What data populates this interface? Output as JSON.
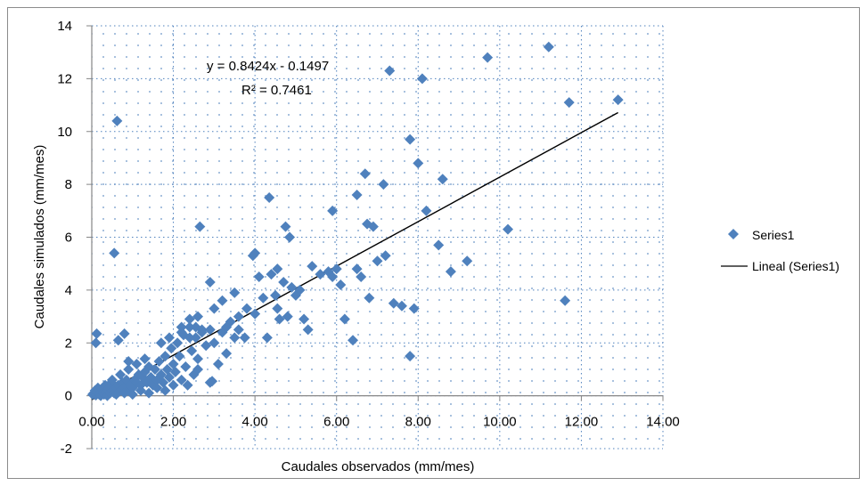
{
  "chart_data": {
    "type": "scatter",
    "title": "",
    "xlabel": "Caudales observados (mm/mes)",
    "ylabel": "Caudales simulados (mm/mes)",
    "xlim": [
      0,
      14
    ],
    "ylim": [
      -2,
      14
    ],
    "x_ticks": [
      "0.00",
      "2.00",
      "4.00",
      "6.00",
      "8.00",
      "10.00",
      "12.00",
      "14.00"
    ],
    "y_ticks": [
      "-2",
      "0",
      "2",
      "4",
      "6",
      "8",
      "10",
      "12",
      "14"
    ],
    "gridlines": "dotted",
    "plot_background": "dotted pattern",
    "legend_position": "right",
    "legend": {
      "series_label": "Series1",
      "trend_label": "Lineal (Series1)"
    },
    "trendline": {
      "slope": 0.8424,
      "intercept": -0.1497,
      "equation": "y = 0.8424x - 0.1497",
      "r2": "R² = 0.7461"
    },
    "colors": {
      "marker": "#4f81bd",
      "trendline": "#000000",
      "axis": "#868686",
      "grid": "#4f81bd"
    },
    "series": [
      {
        "name": "Series1",
        "points": [
          [
            0.02,
            0.05
          ],
          [
            0.05,
            0.1
          ],
          [
            0.08,
            0.2
          ],
          [
            0.1,
            0.02
          ],
          [
            0.12,
            0.15
          ],
          [
            0.15,
            0.3
          ],
          [
            0.18,
            0.05
          ],
          [
            0.2,
            0.1
          ],
          [
            0.22,
            0.0
          ],
          [
            0.25,
            0.25
          ],
          [
            0.28,
            0.1
          ],
          [
            0.3,
            0.05
          ],
          [
            0.33,
            0.4
          ],
          [
            0.35,
            0.15
          ],
          [
            0.38,
            0.0
          ],
          [
            0.4,
            0.2
          ],
          [
            0.42,
            0.3
          ],
          [
            0.45,
            0.1
          ],
          [
            0.48,
            0.5
          ],
          [
            0.5,
            0.2
          ],
          [
            0.55,
            0.1
          ],
          [
            0.6,
            0.3
          ],
          [
            0.65,
            0.4
          ],
          [
            0.7,
            0.2
          ],
          [
            0.75,
            0.5
          ],
          [
            0.8,
            0.3
          ],
          [
            0.85,
            0.6
          ],
          [
            0.9,
            0.2
          ],
          [
            0.95,
            0.4
          ],
          [
            1.0,
            0.3
          ],
          [
            1.05,
            0.6
          ],
          [
            1.1,
            0.5
          ],
          [
            1.15,
            0.8
          ],
          [
            1.2,
            0.4
          ],
          [
            1.25,
            0.7
          ],
          [
            1.3,
            0.9
          ],
          [
            1.35,
            0.5
          ],
          [
            1.4,
            1.1
          ],
          [
            1.45,
            0.7
          ],
          [
            1.5,
            0.4
          ],
          [
            1.55,
            1.0
          ],
          [
            1.6,
            0.6
          ],
          [
            1.65,
            1.3
          ],
          [
            1.7,
            0.8
          ],
          [
            1.75,
            0.5
          ],
          [
            1.8,
            1.5
          ],
          [
            1.85,
            1.0
          ],
          [
            1.9,
            0.7
          ],
          [
            1.95,
            1.8
          ],
          [
            2.0,
            1.2
          ],
          [
            2.05,
            0.9
          ],
          [
            2.1,
            2.0
          ],
          [
            2.15,
            1.5
          ],
          [
            2.2,
            0.6
          ],
          [
            2.25,
            2.3
          ],
          [
            2.3,
            1.1
          ],
          [
            2.35,
            0.4
          ],
          [
            2.4,
            2.6
          ],
          [
            2.45,
            1.7
          ],
          [
            2.5,
            0.8
          ],
          [
            2.55,
            2.2
          ],
          [
            2.6,
            1.4
          ],
          [
            2.7,
            2.5
          ],
          [
            2.8,
            1.9
          ],
          [
            2.9,
            0.5
          ],
          [
            3.0,
            2.0
          ],
          [
            3.1,
            1.2
          ],
          [
            3.2,
            2.4
          ],
          [
            3.3,
            1.6
          ],
          [
            3.4,
            2.8
          ],
          [
            3.5,
            2.2
          ],
          [
            3.6,
            3.0
          ],
          [
            1.2,
            0.2
          ],
          [
            1.4,
            0.1
          ],
          [
            1.6,
            0.3
          ],
          [
            1.8,
            0.2
          ],
          [
            2.0,
            0.4
          ],
          [
            0.5,
            0.6
          ],
          [
            0.7,
            0.8
          ],
          [
            0.9,
            1.0
          ],
          [
            1.1,
            1.2
          ],
          [
            1.3,
            1.4
          ],
          [
            1.7,
            2.0
          ],
          [
            1.9,
            2.2
          ],
          [
            2.2,
            2.6
          ],
          [
            2.4,
            2.9
          ],
          [
            2.6,
            3.0
          ],
          [
            0.6,
            0.05
          ],
          [
            0.8,
            0.1
          ],
          [
            1.0,
            0.05
          ],
          [
            0.12,
            2.35
          ],
          [
            0.1,
            2.0
          ],
          [
            0.65,
            2.1
          ],
          [
            0.8,
            2.35
          ],
          [
            0.9,
            1.3
          ],
          [
            2.2,
            2.4
          ],
          [
            2.4,
            2.2
          ],
          [
            2.55,
            2.6
          ],
          [
            2.7,
            2.4
          ],
          [
            2.9,
            2.5
          ],
          [
            2.95,
            0.55
          ],
          [
            2.6,
            1.0
          ],
          [
            3.2,
            3.6
          ],
          [
            3.5,
            3.9
          ],
          [
            3.6,
            2.5
          ],
          [
            3.75,
            2.2
          ],
          [
            3.8,
            3.3
          ],
          [
            4.0,
            3.1
          ],
          [
            4.1,
            4.5
          ],
          [
            4.2,
            3.7
          ],
          [
            4.3,
            2.2
          ],
          [
            4.4,
            4.6
          ],
          [
            4.5,
            3.8
          ],
          [
            4.55,
            3.3
          ],
          [
            4.6,
            2.9
          ],
          [
            4.7,
            4.3
          ],
          [
            4.8,
            3.0
          ],
          [
            4.9,
            4.1
          ],
          [
            5.0,
            3.8
          ],
          [
            5.1,
            4.0
          ],
          [
            5.2,
            2.9
          ],
          [
            5.3,
            2.5
          ],
          [
            5.4,
            4.9
          ],
          [
            5.6,
            4.6
          ],
          [
            5.8,
            4.7
          ],
          [
            5.9,
            4.5
          ],
          [
            6.0,
            4.8
          ],
          [
            6.1,
            4.2
          ],
          [
            6.2,
            2.9
          ],
          [
            6.4,
            2.1
          ],
          [
            6.5,
            4.8
          ],
          [
            6.6,
            4.5
          ],
          [
            6.8,
            3.7
          ],
          [
            7.0,
            5.1
          ],
          [
            7.2,
            5.3
          ],
          [
            7.4,
            3.5
          ],
          [
            7.6,
            3.4
          ],
          [
            7.8,
            1.5
          ],
          [
            7.9,
            3.3
          ],
          [
            8.5,
            5.7
          ],
          [
            8.8,
            4.7
          ],
          [
            9.2,
            5.1
          ],
          [
            10.2,
            6.3
          ],
          [
            11.6,
            3.6
          ],
          [
            2.65,
            6.4
          ],
          [
            2.9,
            4.3
          ],
          [
            4.35,
            7.5
          ],
          [
            4.75,
            6.4
          ],
          [
            4.85,
            6.0
          ],
          [
            4.55,
            4.8
          ],
          [
            5.9,
            7.0
          ],
          [
            6.5,
            7.6
          ],
          [
            6.7,
            8.4
          ],
          [
            6.75,
            6.5
          ],
          [
            6.9,
            6.4
          ],
          [
            7.15,
            8.0
          ],
          [
            7.8,
            9.7
          ],
          [
            8.0,
            8.8
          ],
          [
            8.1,
            12.0
          ],
          [
            8.2,
            7.0
          ],
          [
            8.6,
            8.2
          ],
          [
            7.3,
            12.3
          ],
          [
            9.7,
            12.8
          ],
          [
            11.2,
            13.2
          ],
          [
            11.7,
            11.1
          ],
          [
            12.9,
            11.2
          ],
          [
            0.62,
            10.4
          ],
          [
            0.55,
            5.4
          ],
          [
            3.95,
            5.3
          ],
          [
            4.0,
            5.4
          ],
          [
            3.3,
            2.6
          ],
          [
            3.0,
            3.3
          ]
        ]
      }
    ]
  }
}
